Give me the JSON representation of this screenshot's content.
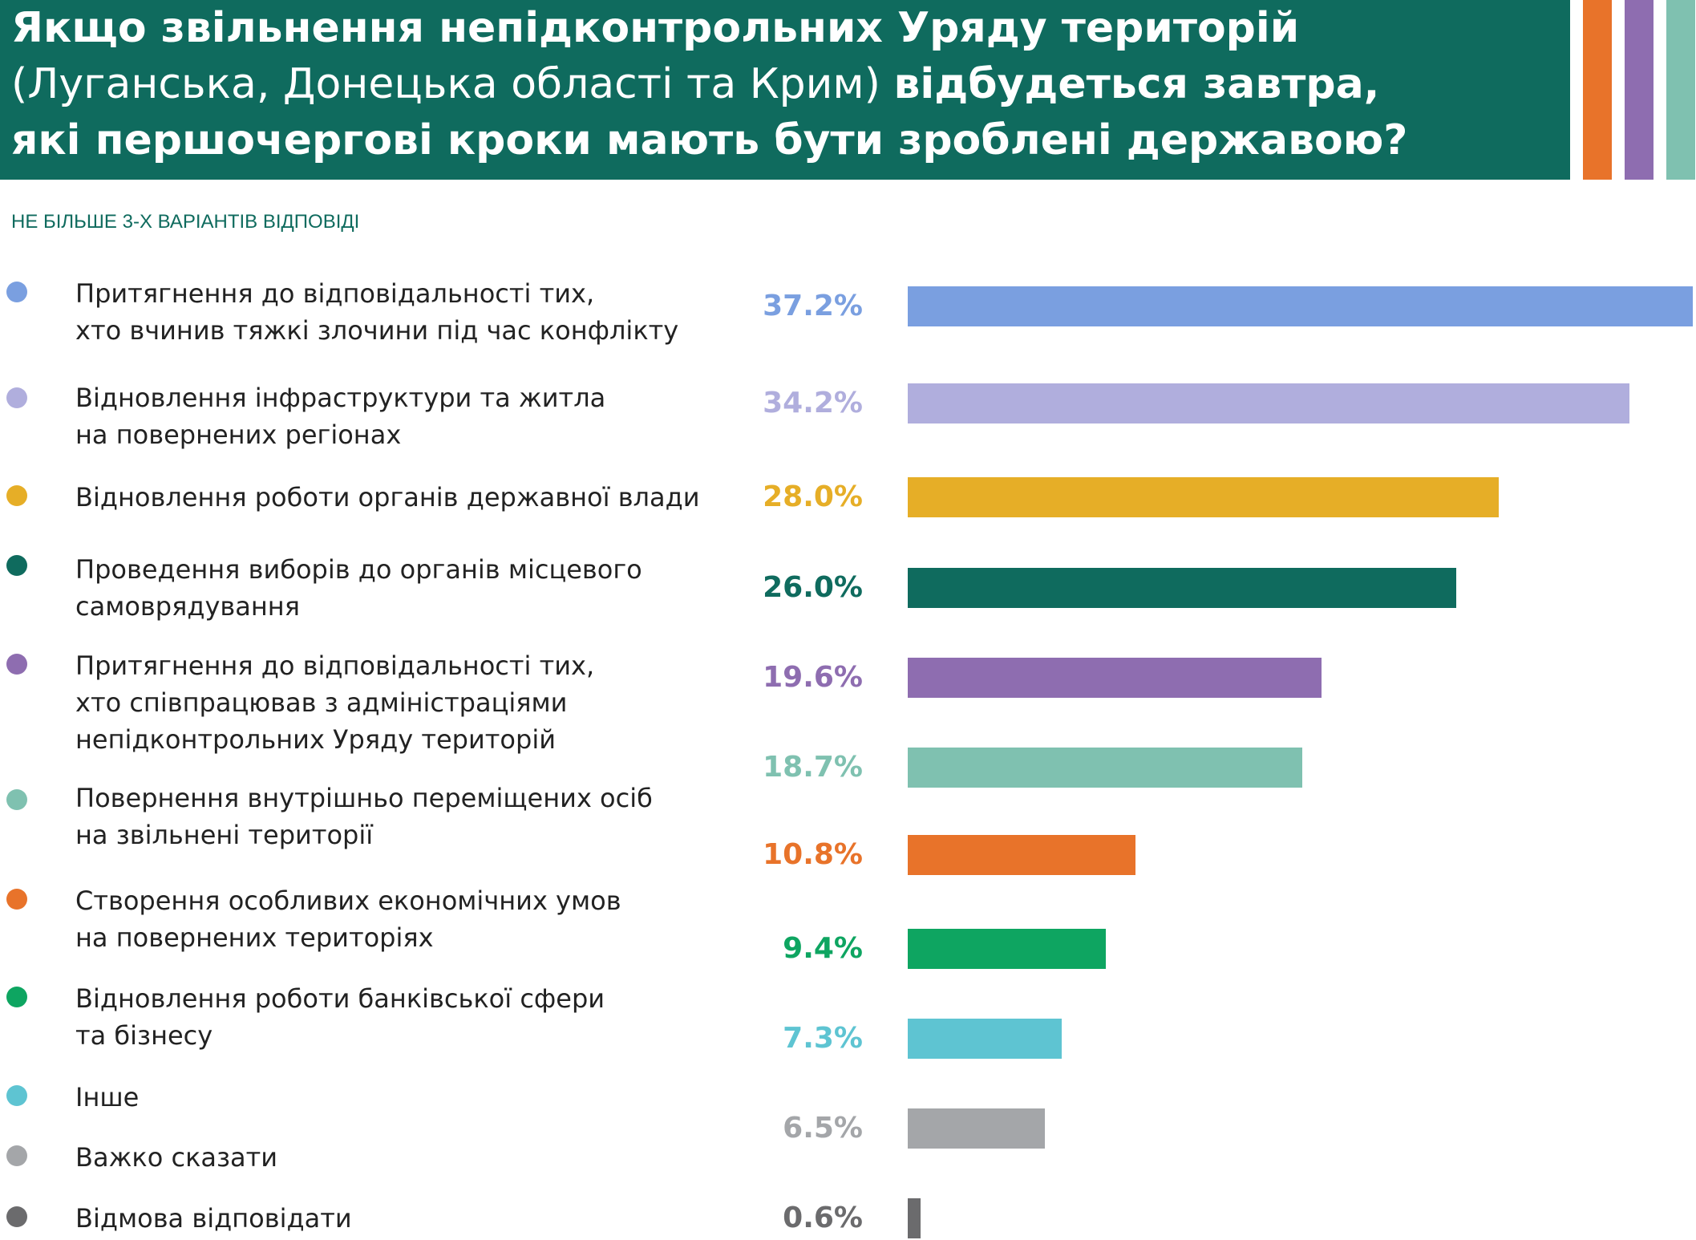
{
  "title": {
    "line1": "Якщо звільнення непідконтрольних Уряду територій",
    "line2_regular": "(Луганська, Донецька області та Крим) ",
    "line2_bold": "відбудеться завтра,",
    "line3": "які першочергові кроки мають бути зроблені державою?"
  },
  "subtitle": "НЕ БІЛЬШЕ 3-Х ВАРІАНТІВ ВІДПОВІДІ",
  "decor_colors": [
    "#e8732a",
    "#8e6db0",
    "#7fc1b0"
  ],
  "chart_data": {
    "type": "bar",
    "orientation": "horizontal",
    "unit": "%",
    "categories": [
      "Притягнення до відповідальності тих, хто вчинив тяжкі злочини під час конфлікту",
      "Відновлення інфраструктури та житла на повернених регіонах",
      "Відновлення роботи органів державної влади",
      "Проведення виборів до органів місцевого самоврядування",
      "Притягнення до відповідальності тих, хто співпрацював з адміністраціями непідконтрольних Уряду територій",
      "Повернення внутрішньо переміщених осіб на звільнені території",
      "Створення особливих економічних умов на повернених територіях",
      "Відновлення роботи банківської сфери та бізнесу",
      "Інше",
      "Важко сказати",
      "Відмова відповідати"
    ],
    "values": [
      37.2,
      34.2,
      28.0,
      26.0,
      19.6,
      18.7,
      10.8,
      9.4,
      7.3,
      6.5,
      0.6
    ],
    "value_labels": [
      "37.2%",
      "34.2%",
      "28.0%",
      "26.0%",
      "19.6%",
      "18.7%",
      "10.8%",
      "9.4%",
      "7.3%",
      "6.5%",
      "0.6%"
    ],
    "label_lines": [
      [
        "Притягнення до відповідальності тих,",
        "хто вчинив тяжкі злочини під час конфлікту"
      ],
      [
        "Відновлення інфраструктури та житла",
        "на повернених регіонах"
      ],
      [
        "Відновлення роботи органів державної влади"
      ],
      [
        "Проведення виборів до органів місцевого",
        "самоврядування"
      ],
      [
        "Притягнення до відповідальності тих,",
        "хто співпрацював з адміністраціями",
        "непідконтрольних Уряду територій"
      ],
      [
        "Повернення внутрішньо переміщених осіб",
        "на звільнені території"
      ],
      [
        "Створення особливих економічних умов",
        "на повернених територіях"
      ],
      [
        "Відновлення роботи банківської сфери",
        "та бізнесу"
      ],
      [
        "Інше"
      ],
      [
        "Важко сказати"
      ],
      [
        "Відмова відповідати"
      ]
    ],
    "colors": [
      "#7a9fe0",
      "#b0aedd",
      "#e6ae27",
      "#0f6b5e",
      "#8e6db0",
      "#7fc1b0",
      "#e8732a",
      "#0ea561",
      "#5ec4d2",
      "#a4a6a9",
      "#6b6b6d"
    ],
    "xlim": [
      0,
      37.2
    ]
  }
}
